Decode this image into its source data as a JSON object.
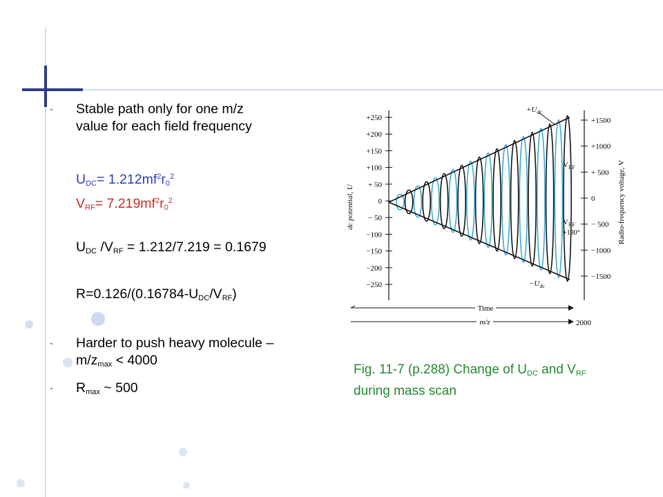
{
  "bullets": {
    "item1_line1": "Stable path only for one m/z",
    "item1_line2": "value for each field frequency",
    "udc": {
      "U": "U",
      "sub": "DC",
      "rest": "= 1.212mf",
      "sup1": "2",
      "r": "r",
      "sub0": "0",
      "sup2": "2"
    },
    "vrf": {
      "V": "V",
      "sub": "RF",
      "rest": "= 7.219mf",
      "sup1": "2",
      "r": "r",
      "sub0": "0",
      "sup2": "2"
    },
    "ratio": {
      "U": "U",
      "subdc": "DC",
      "mid": " /V",
      "subrf": "RF",
      "rest": " = 1.212/7.219 = 0.1679"
    },
    "resolution": {
      "a": "R=0.126/(0.16784-U",
      "subdc": "DC",
      "b": "/V",
      "subrf": "RF",
      "c": ")"
    },
    "item2_line1": "Harder to push heavy molecule –",
    "item2_line2_a": "m/z",
    "item2_line2_sub": "max",
    "item2_line2_b": " < 4000",
    "item3_a": "R",
    "item3_sub": "max",
    "item3_b": " ~ 500",
    "dash": "-"
  },
  "caption": {
    "line1_a": "Fig. 11-7 (p.288)  Change of U",
    "line1_sub1": "DC",
    "line1_b": " and V",
    "line1_sub2": "RF",
    "line2": "during mass scan"
  },
  "figure": {
    "left_axis_label": "dc potential, U",
    "right_axis_label": "Radio-frequency voltage, V",
    "left_ticks": [
      "+250",
      "+200",
      "+150",
      "+100",
      "+ 50",
      "0",
      "− 50",
      "−100",
      "−150",
      "−200",
      "−250"
    ],
    "right_ticks": [
      "+1500",
      "+1000",
      "+ 500",
      "0",
      "− 500",
      "−1000",
      "−1500"
    ],
    "top_label": "+U",
    "top_label_sub": "dc",
    "bottom_label": "−U",
    "bottom_label_sub": "dc",
    "vrf_label": "V",
    "vrf_label_sub": "RF",
    "vrf180_label": "V",
    "vrf180_label_sub": "RF",
    "vrf180_suffix": "+180°",
    "time_label": "Time",
    "mz_label": "m/z",
    "mz_end": "2000",
    "colors": {
      "black": "#111111",
      "blue": "#3aa7d6"
    }
  },
  "decor": {
    "accent_blue": "#2e3a87",
    "light_blue": "#9db3d6"
  }
}
